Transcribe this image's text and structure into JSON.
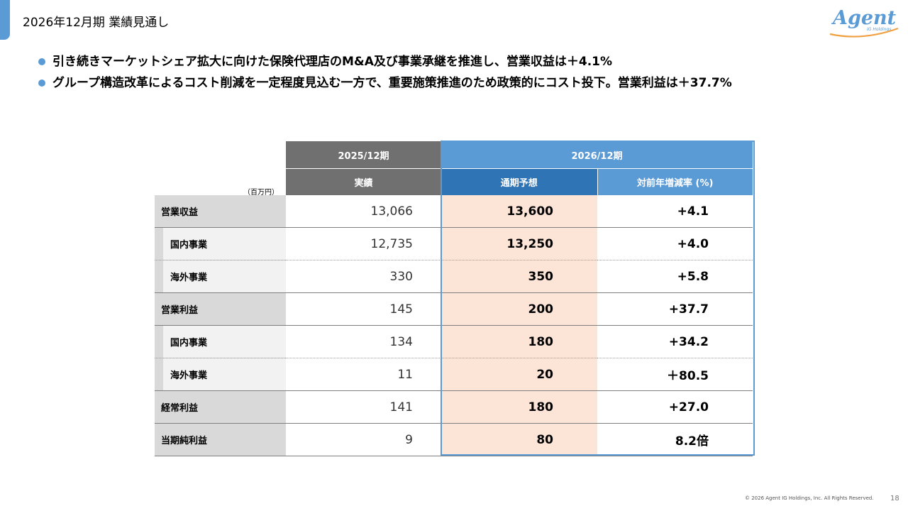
{
  "header": {
    "title": "2026年12月期 業績見通し",
    "logo_text": "Agent",
    "logo_subtext": "IG Holdings"
  },
  "bullets": [
    "引き続きマーケットシェア拡大に向けた保険代理店のM&A及び事業承継を推進し、営業収益は＋4.1%",
    "グループ構造改革によるコスト削減を一定程度見込む一方で、重要施策推進のため政策的にコスト投下。営業利益は＋37.7%"
  ],
  "table": {
    "unit": "（百万円）",
    "period_prev": "2025/12期",
    "period_next": "2026/12期",
    "col_actual": "実績",
    "col_forecast": "通期予想",
    "col_growth": "対前年増減率 (%)",
    "rows": [
      {
        "label": "営業収益",
        "actual": "13,066",
        "forecast": "13,600",
        "growth": "+4.1"
      },
      {
        "label": "国内事業",
        "actual": "12,735",
        "forecast": "13,250",
        "growth": "+4.0"
      },
      {
        "label": "海外事業",
        "actual": "330",
        "forecast": "350",
        "growth": "+5.8"
      },
      {
        "label": "営業利益",
        "actual": "145",
        "forecast": "200",
        "growth": "+37.7"
      },
      {
        "label": "国内事業",
        "actual": "134",
        "forecast": "180",
        "growth": "+34.2"
      },
      {
        "label": "海外事業",
        "actual": "11",
        "forecast": "20",
        "growth": "＋80.5"
      },
      {
        "label": "経常利益",
        "actual": "141",
        "forecast": "180",
        "growth": "+27.0"
      },
      {
        "label": "当期純利益",
        "actual": "9",
        "forecast": "80",
        "growth": "8.2倍"
      }
    ]
  },
  "colors": {
    "accent": "#5b9bd5",
    "forecast_header": "#2f75b5",
    "prev_header": "#707070",
    "forecast_cell": "#fce4d6",
    "logo_orange": "#f0a040"
  },
  "footer": {
    "copyright": "© 2026 Agent IG Holdings, Inc. All Rights Reserved.",
    "page": "18"
  }
}
